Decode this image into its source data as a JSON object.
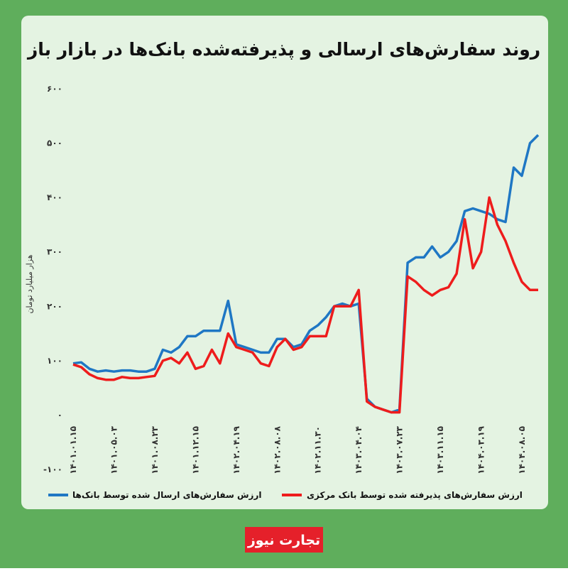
{
  "chart_data": {
    "type": "line",
    "title": "روند سفارش‌های ارسالی و پذیرفته‌شده بانک‌ها در بازار باز",
    "y_label": "هزار میلیارد تومان",
    "brand": "تجارت نیوز",
    "categories": [
      "۱۴۰۱.۰۱.۱۵",
      null,
      null,
      null,
      null,
      "۱۴۰۱.۰۵.۰۳",
      null,
      null,
      null,
      null,
      "۱۴۰۱.۰۸.۲۳",
      null,
      null,
      null,
      null,
      "۱۴۰۱.۱۲.۱۵",
      null,
      null,
      null,
      null,
      "۱۴۰۲.۰۴.۱۹",
      null,
      null,
      null,
      null,
      "۱۴۰۲.۰۸.۰۸",
      null,
      null,
      null,
      null,
      "۱۴۰۲.۱۱.۳۰",
      null,
      null,
      null,
      null,
      "۱۴۰۳.۰۴.۰۴",
      null,
      null,
      null,
      null,
      "۱۴۰۳.۰۷.۲۳",
      null,
      null,
      null,
      null,
      "۱۴۰۳.۱۱.۱۵",
      null,
      null,
      null,
      null,
      "۱۴۰۴.۰۳.۱۹",
      null,
      null,
      null,
      null,
      "۱۴۰۴.۰۸.۰۵",
      null,
      null
    ],
    "series": [
      {
        "name": "ارزش سفارش‌های ارسال شده توسط بانک‌ها",
        "color": "#1f77c4",
        "values": [
          95,
          97,
          85,
          80,
          82,
          80,
          82,
          82,
          80,
          80,
          85,
          120,
          115,
          125,
          145,
          145,
          155,
          155,
          155,
          210,
          130,
          125,
          120,
          115,
          115,
          140,
          140,
          125,
          130,
          155,
          165,
          180,
          200,
          205,
          200,
          205,
          30,
          15,
          10,
          5,
          10,
          280,
          290,
          290,
          310,
          290,
          300,
          320,
          375,
          380,
          375,
          370,
          360,
          355,
          455,
          440,
          500,
          515
        ]
      },
      {
        "name": "ارزش سفارش‌های پذیرفته شده توسط بانک مرکزی",
        "color": "#ee1c1c",
        "values": [
          93,
          88,
          75,
          68,
          65,
          65,
          70,
          68,
          68,
          70,
          72,
          100,
          105,
          95,
          115,
          85,
          90,
          120,
          95,
          150,
          125,
          120,
          115,
          95,
          90,
          125,
          140,
          120,
          125,
          145,
          145,
          145,
          200,
          200,
          200,
          230,
          25,
          15,
          10,
          5,
          5,
          255,
          245,
          230,
          220,
          230,
          235,
          260,
          360,
          270,
          300,
          400,
          350,
          320,
          280,
          245,
          230,
          230
        ]
      }
    ],
    "ylim": [
      -100,
      600
    ],
    "yticks": [
      {
        "value": -100,
        "label": "-۱۰۰"
      },
      {
        "value": 0,
        "label": "۰"
      },
      {
        "value": 100,
        "label": "۱۰۰"
      },
      {
        "value": 200,
        "label": "۲۰۰"
      },
      {
        "value": 300,
        "label": "۳۰۰"
      },
      {
        "value": 400,
        "label": "۴۰۰"
      },
      {
        "value": 500,
        "label": "۵۰۰"
      },
      {
        "value": 600,
        "label": "۶۰۰"
      }
    ]
  }
}
